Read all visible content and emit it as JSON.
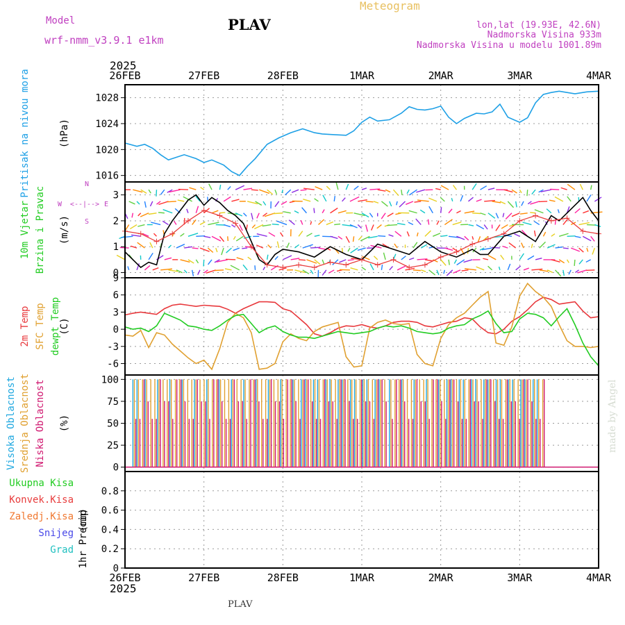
{
  "header": {
    "model_label": "Model",
    "model_name": "wrf-nmm_v3.9.1  e1km",
    "station": "PLAV",
    "product": "Meteogram",
    "lonlat": "lon,lat (19.93E, 42.6N)",
    "elevation": "Nadmorska Visina 933m",
    "model_elevation": "Nadmorska Visina u modelu 1001.89m",
    "year": "2025",
    "footer_station": "PLAV",
    "credit": "made by Angel"
  },
  "colors": {
    "pressure": "#1ea0e6",
    "temp2m": "#e8383c",
    "sfc": "#e0a030",
    "dewpt": "#22cc22",
    "wind_speed": "#000000",
    "gust": "#e83c3c",
    "wind_label": "#c040c0",
    "visoka": "#20a8e0",
    "srednja": "#e0a030",
    "niska": "#d01870",
    "ukupna": "#22cc22",
    "konvek": "#e83c3c",
    "zaledj": "#f07830",
    "snijeg": "#4848e8",
    "grad": "#20c0c0"
  },
  "chart_data": {
    "type": "line",
    "x_ticks": [
      "26FEB",
      "27FEB",
      "28FEB",
      "1MAR",
      "2MAR",
      "3MAR",
      "4MAR"
    ],
    "panels": [
      {
        "id": "pressure",
        "ylabel_lines": [
          "Pritisak na nivou mora"
        ],
        "unit": "(hPa)",
        "ylim": [
          1015,
          1030
        ],
        "yticks": [
          1016,
          1020,
          1024,
          1028
        ],
        "series": [
          {
            "name": "Pritisak na nivou mora",
            "color_key": "pressure",
            "x": [
              0,
              0.15,
              0.25,
              0.35,
              0.45,
              0.55,
              0.65,
              0.75,
              0.9,
              1.0,
              1.1,
              1.25,
              1.35,
              1.45,
              1.55,
              1.65,
              1.8,
              1.95,
              2.1,
              2.25,
              2.4,
              2.5,
              2.65,
              2.8,
              2.9,
              3.0,
              3.1,
              3.2,
              3.35,
              3.5,
              3.6,
              3.7,
              3.8,
              3.9,
              4.0,
              4.1,
              4.2,
              4.3,
              4.45,
              4.55,
              4.65,
              4.75,
              4.85,
              5.0,
              5.1,
              5.2,
              5.3,
              5.4,
              5.5,
              5.6,
              5.7,
              5.85,
              6.0
            ],
            "values": [
              1021.0,
              1020.5,
              1020.8,
              1020.2,
              1019.2,
              1018.4,
              1018.8,
              1019.2,
              1018.6,
              1018.0,
              1018.4,
              1017.6,
              1016.6,
              1016.0,
              1017.4,
              1018.6,
              1020.8,
              1021.8,
              1022.6,
              1023.2,
              1022.6,
              1022.4,
              1022.3,
              1022.2,
              1022.9,
              1024.2,
              1025.0,
              1024.4,
              1024.6,
              1025.6,
              1026.6,
              1026.2,
              1026.1,
              1026.3,
              1026.7,
              1025.0,
              1024.0,
              1024.8,
              1025.6,
              1025.5,
              1025.8,
              1027.0,
              1025.0,
              1024.2,
              1024.9,
              1027.2,
              1028.5,
              1028.8,
              1029.0,
              1028.8,
              1028.6,
              1028.9,
              1029.0
            ]
          }
        ]
      },
      {
        "id": "wind",
        "ylabel_lines": [
          "10m Vjetar",
          "Brzina i Pravac"
        ],
        "unit": "(m/s)",
        "direction_legend": [
          "N",
          "<--|-->",
          "W",
          "E",
          "S"
        ],
        "ylim": [
          -0.2,
          3.5
        ],
        "yticks": [
          0,
          1,
          2,
          3
        ],
        "series": [
          {
            "name": "brzina",
            "color_key": "wind_speed",
            "x": [
              0,
              0.1,
              0.2,
              0.3,
              0.4,
              0.5,
              0.6,
              0.7,
              0.8,
              0.9,
              1.0,
              1.1,
              1.2,
              1.3,
              1.4,
              1.5,
              1.6,
              1.7,
              1.8,
              1.9,
              2.0,
              2.2,
              2.4,
              2.6,
              2.8,
              3.0,
              3.2,
              3.4,
              3.6,
              3.8,
              4.0,
              4.2,
              4.4,
              4.5,
              4.6,
              4.8,
              5.0,
              5.2,
              5.4,
              5.5,
              5.6,
              5.7,
              5.8,
              5.9,
              6.0
            ],
            "values": [
              0.8,
              0.5,
              0.2,
              0.4,
              0.3,
              1.5,
              2.0,
              2.4,
              2.8,
              3.0,
              2.6,
              2.9,
              2.7,
              2.4,
              2.2,
              1.9,
              1.2,
              0.5,
              0.3,
              0.7,
              0.9,
              0.8,
              0.6,
              1.0,
              0.7,
              0.5,
              1.1,
              0.9,
              0.7,
              1.2,
              0.8,
              0.6,
              0.9,
              0.7,
              0.7,
              1.4,
              1.6,
              1.2,
              2.2,
              2.0,
              2.3,
              2.6,
              2.9,
              2.4,
              2.0
            ]
          },
          {
            "name": "udari",
            "color_key": "gust",
            "x": [
              0,
              0.2,
              0.4,
              0.6,
              0.8,
              1.0,
              1.2,
              1.4,
              1.6,
              1.8,
              2.0,
              2.2,
              2.4,
              2.6,
              2.8,
              3.0,
              3.2,
              3.4,
              3.6,
              3.8,
              4.0,
              4.2,
              4.4,
              4.6,
              4.8,
              5.0,
              5.2,
              5.4,
              5.6,
              5.8,
              6.0
            ],
            "values": [
              1.6,
              1.5,
              1.2,
              1.5,
              2.0,
              2.4,
              2.2,
              1.9,
              1.0,
              0.3,
              0.2,
              0.3,
              0.2,
              0.4,
              0.3,
              0.5,
              0.3,
              0.5,
              0.2,
              0.3,
              0.6,
              0.8,
              1.1,
              1.3,
              1.5,
              2.0,
              2.2,
              2.0,
              2.1,
              1.6,
              1.5
            ]
          }
        ]
      },
      {
        "id": "temp",
        "ylabel_lines": [
          "2m Temp",
          "SFC Temp",
          "dewpt Temp"
        ],
        "unit": "(C)",
        "ylim": [
          -8,
          9
        ],
        "yticks": [
          -6,
          -3,
          0,
          3,
          6,
          9
        ],
        "series": [
          {
            "name": "2m Temp",
            "color_key": "temp2m",
            "x": [
              0,
              0.1,
              0.2,
              0.3,
              0.4,
              0.5,
              0.6,
              0.7,
              0.8,
              0.9,
              1.0,
              1.1,
              1.2,
              1.3,
              1.4,
              1.5,
              1.6,
              1.7,
              1.8,
              1.9,
              2.0,
              2.1,
              2.2,
              2.3,
              2.4,
              2.5,
              2.6,
              2.7,
              2.8,
              2.9,
              3.0,
              3.1,
              3.2,
              3.3,
              3.4,
              3.5,
              3.6,
              3.7,
              3.8,
              3.9,
              4.0,
              4.1,
              4.2,
              4.3,
              4.4,
              4.5,
              4.6,
              4.7,
              4.8,
              4.9,
              5.0,
              5.1,
              5.2,
              5.3,
              5.4,
              5.5,
              5.6,
              5.7,
              5.8,
              5.9,
              6.0
            ],
            "values": [
              2.5,
              2.8,
              3.0,
              2.8,
              2.6,
              3.6,
              4.2,
              4.4,
              4.2,
              4.0,
              4.2,
              4.1,
              4.0,
              3.5,
              2.8,
              3.6,
              4.2,
              4.8,
              4.8,
              4.7,
              3.6,
              3.2,
              2.0,
              0.8,
              -0.8,
              -1.2,
              -0.6,
              0.2,
              0.6,
              0.5,
              0.8,
              0.4,
              0.2,
              0.6,
              1.2,
              1.4,
              1.4,
              1.2,
              0.6,
              0.4,
              0.8,
              1.2,
              1.4,
              2.0,
              1.8,
              0.4,
              -0.6,
              -0.8,
              0.0,
              1.4,
              2.2,
              3.4,
              4.8,
              5.6,
              5.2,
              4.4,
              4.6,
              4.8,
              3.2,
              2.0,
              2.2
            ]
          },
          {
            "name": "SFC Temp",
            "color_key": "sfc",
            "x": [
              0,
              0.1,
              0.2,
              0.3,
              0.4,
              0.5,
              0.6,
              0.7,
              0.8,
              0.9,
              1.0,
              1.1,
              1.2,
              1.3,
              1.4,
              1.5,
              1.6,
              1.7,
              1.8,
              1.9,
              2.0,
              2.1,
              2.2,
              2.3,
              2.4,
              2.5,
              2.6,
              2.7,
              2.8,
              2.9,
              3.0,
              3.1,
              3.2,
              3.3,
              3.4,
              3.5,
              3.6,
              3.7,
              3.8,
              3.9,
              4.0,
              4.1,
              4.2,
              4.3,
              4.4,
              4.5,
              4.6,
              4.7,
              4.8,
              4.9,
              5.0,
              5.1,
              5.2,
              5.3,
              5.4,
              5.5,
              5.6,
              5.7,
              5.8,
              5.9,
              6.0
            ],
            "values": [
              -1.0,
              -1.2,
              -0.2,
              -3.2,
              -0.6,
              -1.0,
              -2.6,
              -3.8,
              -5.0,
              -6.0,
              -5.4,
              -7.0,
              -3.4,
              1.2,
              2.8,
              2.0,
              -0.6,
              -7.0,
              -6.8,
              -6.0,
              -2.2,
              -0.8,
              -1.6,
              -2.0,
              -0.4,
              0.4,
              0.8,
              1.2,
              -4.8,
              -6.6,
              -6.4,
              0.2,
              1.2,
              1.6,
              1.0,
              0.8,
              1.0,
              -4.4,
              -6.0,
              -6.4,
              -1.6,
              0.8,
              2.0,
              2.8,
              4.2,
              5.6,
              6.6,
              -2.4,
              -2.8,
              0.4,
              5.8,
              8.0,
              6.6,
              5.6,
              4.0,
              0.8,
              -2.0,
              -3.0,
              -3.0,
              -3.2,
              -3.0
            ]
          },
          {
            "name": "dewpt Temp",
            "color_key": "dewpt",
            "x": [
              0,
              0.1,
              0.2,
              0.3,
              0.4,
              0.5,
              0.6,
              0.7,
              0.8,
              0.9,
              1.0,
              1.1,
              1.2,
              1.3,
              1.4,
              1.5,
              1.6,
              1.7,
              1.8,
              1.9,
              2.0,
              2.1,
              2.2,
              2.3,
              2.4,
              2.5,
              2.6,
              2.7,
              2.8,
              2.9,
              3.0,
              3.1,
              3.2,
              3.3,
              3.4,
              3.5,
              3.6,
              3.7,
              3.8,
              3.9,
              4.0,
              4.1,
              4.2,
              4.3,
              4.4,
              4.5,
              4.6,
              4.7,
              4.8,
              4.9,
              5.0,
              5.1,
              5.2,
              5.3,
              5.4,
              5.5,
              5.6,
              5.7,
              5.8,
              5.9,
              6.0
            ],
            "values": [
              0.4,
              0.0,
              0.2,
              -0.4,
              0.6,
              2.8,
              2.2,
              1.6,
              0.6,
              0.4,
              0.0,
              -0.2,
              0.6,
              1.6,
              2.4,
              2.6,
              1.0,
              -0.6,
              0.2,
              0.6,
              -0.4,
              -1.0,
              -1.4,
              -1.4,
              -1.6,
              -1.2,
              -0.8,
              -0.4,
              -0.6,
              -0.8,
              -0.6,
              -0.4,
              0.2,
              0.6,
              0.4,
              0.6,
              0.2,
              -0.4,
              -0.6,
              -0.8,
              -0.6,
              0.2,
              0.6,
              0.8,
              1.8,
              2.4,
              3.2,
              1.0,
              -0.6,
              -0.4,
              1.8,
              2.8,
              2.6,
              2.0,
              0.6,
              2.2,
              3.6,
              0.8,
              -2.4,
              -4.8,
              -6.4
            ]
          }
        ]
      },
      {
        "id": "cloud",
        "ylabel_lines": [
          "Visoka Oblacnost",
          "Srednja Oblacnost",
          "Niska Oblacnost"
        ],
        "unit": "(%)",
        "ylim": [
          -5,
          105
        ],
        "yticks": [
          0,
          25,
          50,
          75,
          100
        ],
        "series": [
          {
            "name": "Visoka Oblacnost",
            "color_key": "visoka",
            "ranges": [
              [
                0.1,
                3.3
              ],
              [
                3.35,
                5.3
              ]
            ],
            "values": [
              0,
              100
            ]
          },
          {
            "name": "Srednja Oblacnost",
            "color_key": "srednja",
            "ranges": [
              [
                0.1,
                3.3
              ],
              [
                3.35,
                5.3
              ]
            ],
            "values": [
              100
            ]
          },
          {
            "name": "Niska Oblacnost",
            "color_key": "niska",
            "ranges": [
              [
                0.1,
                3.3
              ],
              [
                3.35,
                5.3
              ]
            ],
            "values": [
              100,
              75,
              55
            ]
          }
        ]
      },
      {
        "id": "precip",
        "ylabel_lines": [
          "1hr Precip"
        ],
        "unit": "(mm)",
        "ylim": [
          0,
          1.0
        ],
        "yticks": [
          0,
          0.2,
          0.4,
          0.6,
          0.8
        ],
        "legend": [
          "Ukupna Kisa",
          "Konvek.Kisa",
          "Zaledj.Kisa",
          "Snijeg",
          "Grad"
        ],
        "legend_color_keys": [
          "ukupna",
          "konvek",
          "zaledj",
          "snijeg",
          "grad"
        ],
        "series": []
      }
    ]
  }
}
